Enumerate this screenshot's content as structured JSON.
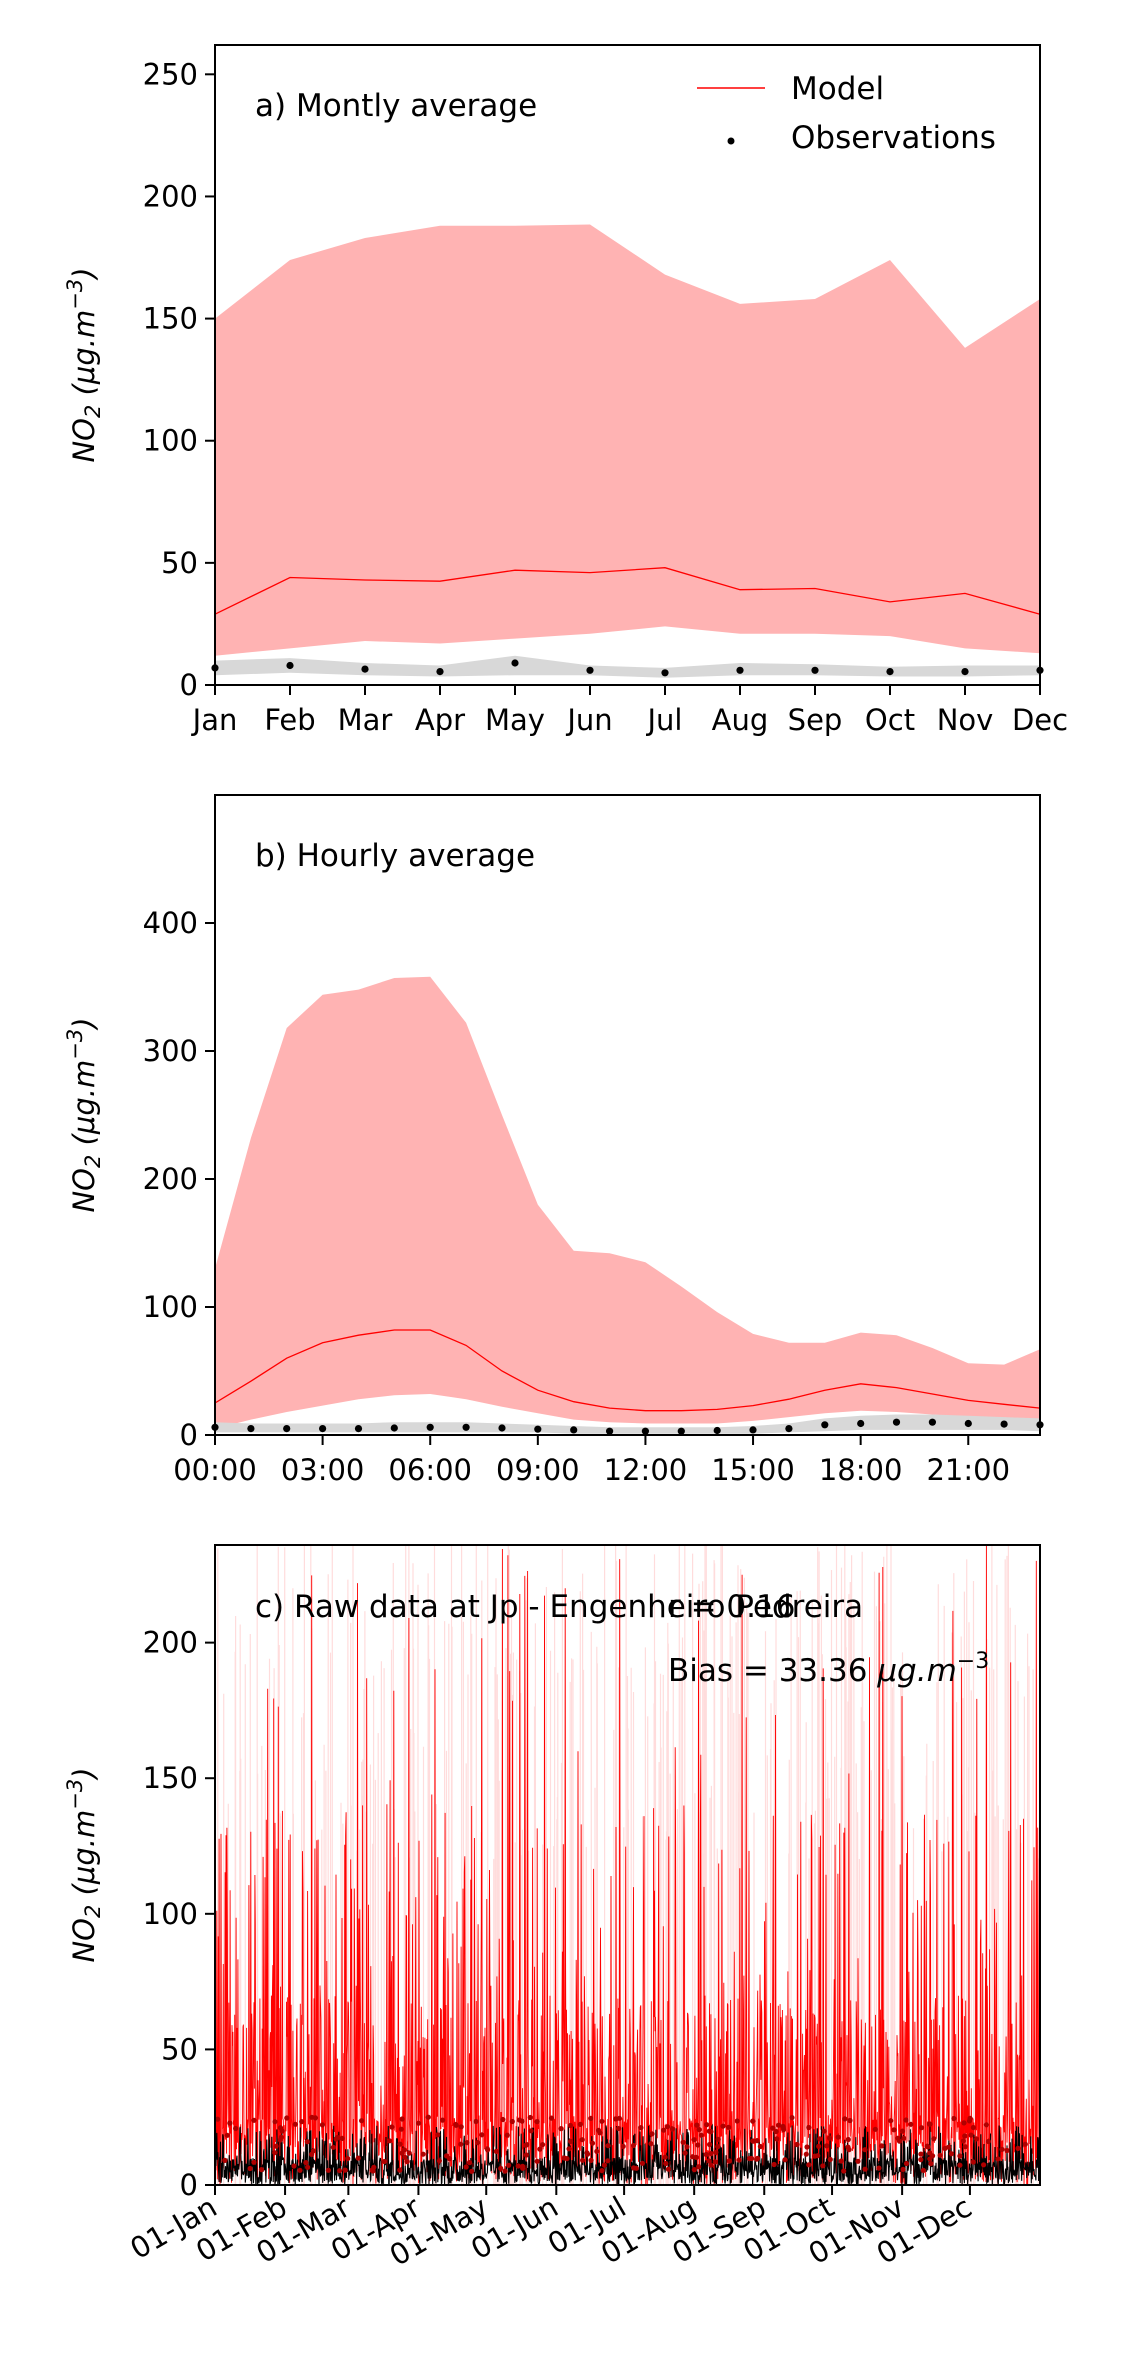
{
  "colors": {
    "model_line": "#ff0000",
    "model_band": "#ffb3b3",
    "obs_band": "#d8d8d8",
    "obs_points": "#000000",
    "raw_model": "#ff0000",
    "raw_model_light": "#ffdcdc",
    "raw_obs": "#000000",
    "raw_obs_points": "#b00000"
  },
  "ylabel_text": "NO",
  "ylabel_sub": "2",
  "ylabel_units": " (μg.m",
  "ylabel_exp": "−3",
  "ylabel_close": ")",
  "legend": {
    "model": "Model",
    "observations": "Observations"
  },
  "chart_data": [
    {
      "type": "line",
      "title": "a) Montly average",
      "ylabel": "NO2 (μg.m−3)",
      "categories": [
        "Jan",
        "Feb",
        "Mar",
        "Apr",
        "May",
        "Jun",
        "Jul",
        "Aug",
        "Sep",
        "Oct",
        "Nov",
        "Dec"
      ],
      "ylim": [
        0,
        262
      ],
      "yticks": [
        0,
        50,
        100,
        150,
        200,
        250
      ],
      "legend_position": "top-right",
      "grid": false,
      "series": [
        {
          "name": "Model",
          "values": [
            29,
            44,
            43,
            42.5,
            47,
            46,
            48,
            39,
            39.5,
            34,
            37.5,
            29
          ]
        },
        {
          "name": "Observations",
          "values": [
            7,
            8,
            6.5,
            5.5,
            9,
            6,
            5,
            6,
            6,
            5.5,
            5.5,
            6
          ]
        }
      ],
      "model_band": {
        "lower": [
          12,
          15,
          18,
          17,
          19,
          21,
          24,
          21,
          21,
          20,
          15,
          13
        ],
        "upper": [
          150,
          174,
          183,
          188,
          188,
          188.5,
          168,
          156,
          158,
          174,
          138,
          158
        ]
      },
      "obs_band": {
        "lower": [
          4,
          5,
          4,
          3.5,
          4,
          4,
          3,
          4,
          4,
          3.5,
          3.5,
          4
        ],
        "upper": [
          10,
          11,
          9,
          8,
          12,
          8,
          7,
          9,
          8.5,
          7.5,
          8,
          8
        ]
      }
    },
    {
      "type": "line",
      "title": "b) Hourly average",
      "ylabel": "NO2 (μg.m−3)",
      "x": [
        0,
        1,
        2,
        3,
        4,
        5,
        6,
        7,
        8,
        9,
        10,
        11,
        12,
        13,
        14,
        15,
        16,
        17,
        18,
        19,
        20,
        21,
        22,
        23
      ],
      "xtick_labels": [
        "00:00",
        "03:00",
        "06:00",
        "09:00",
        "12:00",
        "15:00",
        "18:00",
        "21:00"
      ],
      "xtick_values": [
        0,
        3,
        6,
        9,
        12,
        15,
        18,
        21
      ],
      "ylim": [
        0,
        500
      ],
      "yticks": [
        0,
        100,
        200,
        300,
        400
      ],
      "grid": false,
      "series": [
        {
          "name": "Model",
          "values": [
            25,
            42,
            60,
            72,
            78,
            82,
            82,
            70,
            50,
            35,
            26,
            21,
            19,
            19,
            20,
            23,
            28,
            35,
            40,
            37,
            32,
            27,
            24,
            21
          ]
        },
        {
          "name": "Observations",
          "values": [
            6,
            5,
            5,
            5,
            5,
            5.5,
            6,
            6,
            5.5,
            4.5,
            4,
            3,
            3,
            3,
            3.5,
            4,
            5,
            8,
            9,
            10,
            10,
            9,
            8.5,
            8
          ]
        }
      ],
      "model_band": {
        "lower": [
          5,
          12,
          18,
          23,
          28,
          31,
          32,
          28,
          22,
          17,
          12,
          10,
          9,
          9,
          9,
          11,
          14,
          17,
          19,
          18,
          16,
          14,
          12,
          10
        ],
        "upper": [
          130,
          232,
          318,
          344,
          348,
          357,
          358,
          322,
          250,
          180,
          144,
          142,
          135,
          116,
          96,
          79,
          72,
          72,
          80,
          78,
          68,
          56,
          55,
          67
        ]
      },
      "obs_band": {
        "lower": [
          2,
          2,
          2,
          2,
          2,
          2,
          2,
          2,
          2,
          2,
          1,
          1,
          1,
          1,
          1,
          1,
          2,
          3,
          4,
          4,
          4,
          4,
          4,
          3
        ],
        "upper": [
          10,
          9,
          9,
          9,
          9,
          10,
          10,
          10,
          9,
          8,
          7,
          6,
          6,
          6,
          6,
          7,
          9,
          13,
          15,
          16,
          16,
          15,
          14,
          13
        ]
      }
    },
    {
      "type": "line",
      "title": "c) Raw data at Jp - Engenheiro Pedreira",
      "ylabel": "NO2 (μg.m−3)",
      "stats": {
        "r_label": "r = 0.16",
        "bias_label": "Bias = 33.36 ",
        "bias_units": "μg.m",
        "bias_exp": "−3"
      },
      "xtick_labels": [
        "01-Jan",
        "01-Feb",
        "01-Mar",
        "01-Apr",
        "01-May",
        "01-Jun",
        "01-Jul",
        "01-Aug",
        "01-Sep",
        "01-Oct",
        "01-Nov",
        "01-Dec"
      ],
      "xtick_days": [
        0,
        31,
        59,
        90,
        120,
        151,
        181,
        212,
        243,
        273,
        304,
        334
      ],
      "x_range_days": [
        0,
        365
      ],
      "ylim": [
        0,
        236
      ],
      "yticks": [
        0,
        50,
        100,
        150,
        200
      ],
      "grid": false,
      "series": [
        {
          "name": "Model",
          "description": "hourly modelled NO2, dense spikes mostly 0-130 with peaks up to ~236"
        },
        {
          "name": "Observations",
          "description": "hourly observed NO2, mostly 0-25"
        }
      ]
    }
  ]
}
